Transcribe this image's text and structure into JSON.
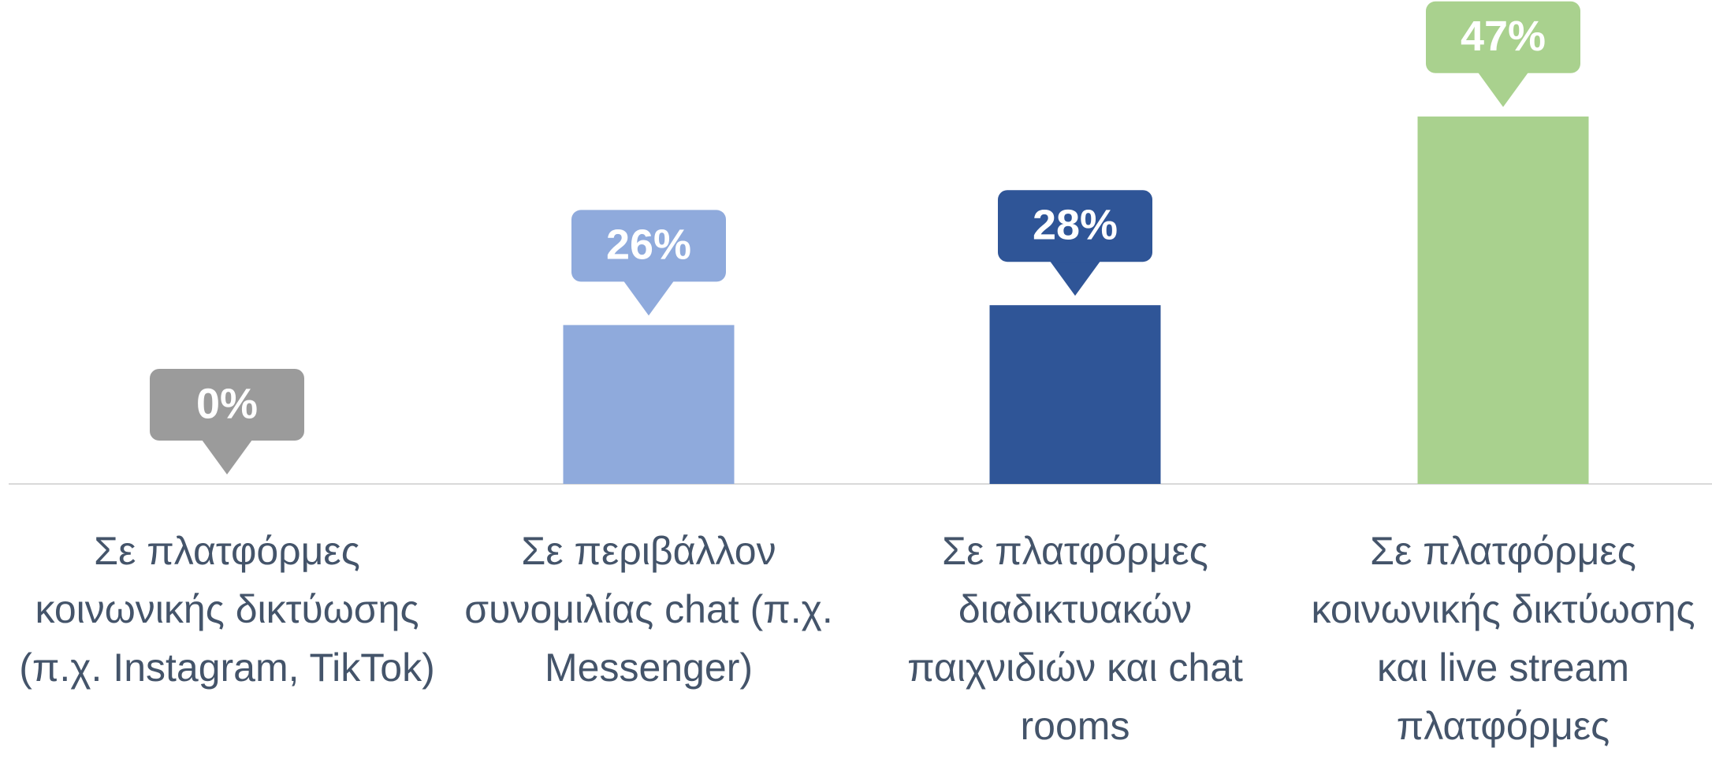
{
  "chart_data": {
    "type": "bar",
    "categories": [
      "Σε πλατφόρμες κοινωνικής δικτύωσης (π.χ. Instagram, TikTok)",
      "Σε περιβάλλον συνομιλίας chat (π.χ. Messenger)",
      "Σε πλατφόρμες διαδικτυακών παιχνιδιών και chat rooms",
      "Σε πλατφόρμες κοινωνικής δικτύωσης και live stream πλατφόρμες"
    ],
    "values": [
      0,
      26,
      28,
      47
    ],
    "value_labels": [
      "0%",
      "26%",
      "28%",
      "47%"
    ],
    "colors": [
      "#9b9b9b",
      "#8faadc",
      "#2f5597",
      "#a9d18e"
    ],
    "ylim": [
      10,
      50
    ]
  }
}
